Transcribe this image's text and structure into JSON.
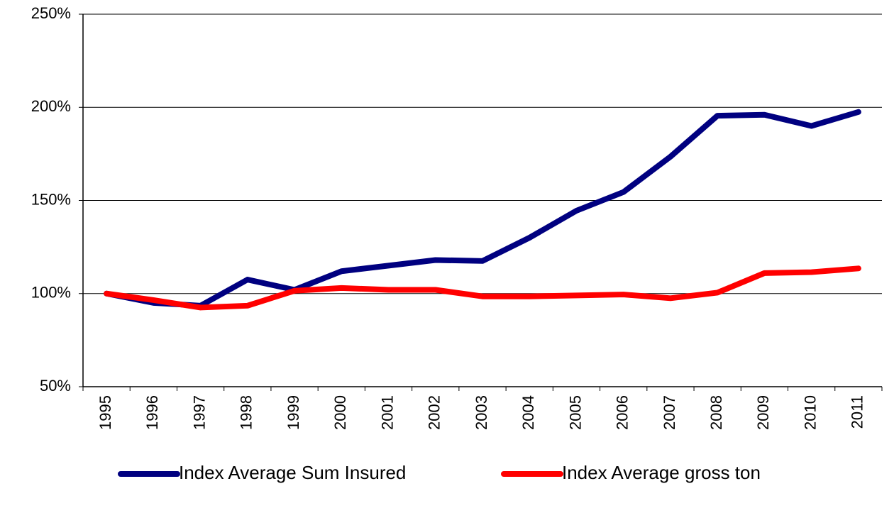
{
  "chart_data": {
    "type": "line",
    "categories": [
      "1995",
      "1996",
      "1997",
      "1998",
      "1999",
      "2000",
      "2001",
      "2002",
      "2003",
      "2004",
      "2005",
      "2006",
      "2007",
      "2008",
      "2009",
      "2010",
      "2011"
    ],
    "series": [
      {
        "name": "Index Average Sum Insured",
        "color": "#000080",
        "values": [
          100,
          95,
          93.5,
          107.5,
          102,
          112,
          115,
          118,
          117.5,
          130,
          144.5,
          154.5,
          173.5,
          195.5,
          196,
          190,
          197.5
        ]
      },
      {
        "name": "Index Average gross ton",
        "color": "#ff0000",
        "values": [
          100,
          96.5,
          92.5,
          93.5,
          101.5,
          103,
          102,
          102,
          98.5,
          98.5,
          99,
          99.5,
          97.5,
          100.5,
          111,
          111.5,
          113.5
        ]
      }
    ],
    "ylim": [
      50,
      250
    ],
    "yticks": [
      {
        "value": 50,
        "label": "50%"
      },
      {
        "value": 100,
        "label": "100%"
      },
      {
        "value": 150,
        "label": "150%"
      },
      {
        "value": 200,
        "label": "200%"
      },
      {
        "value": 250,
        "label": "250%"
      }
    ],
    "grid": true,
    "legend": "bottom"
  }
}
